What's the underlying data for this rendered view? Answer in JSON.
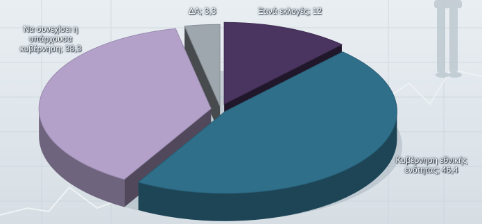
{
  "chart_data": {
    "type": "pie",
    "style": "3d-exploded",
    "slices": [
      {
        "label": "Ξανά εκλογές",
        "value": 12,
        "color": "#4a3460"
      },
      {
        "label": "Κυβέρνηση εθνικής ενότητας",
        "value": 46.4,
        "color": "#2f6f8a"
      },
      {
        "label": "Να συνεχίσει η υπάρχουσα κυβέρνηση",
        "value": 38.3,
        "color": "#b3a1ca"
      },
      {
        "label": "ΔΑ",
        "value": 3.3,
        "color": "#9ea6ae"
      }
    ],
    "data_labels": [
      {
        "line1": "Ξανά εκλογές; 12",
        "line2": "",
        "line3": ""
      },
      {
        "line1": "Κυβέρνηση εθνικής",
        "line2": "ενότητας; 46,4",
        "line3": ""
      },
      {
        "line1": "Να συνεχίσει η",
        "line2": "υπάρχουσα",
        "line3": "κυβέρνηση; 38,3"
      },
      {
        "line1": "ΔΑ; 3,3",
        "line2": "",
        "line3": ""
      }
    ],
    "legend": "none"
  }
}
